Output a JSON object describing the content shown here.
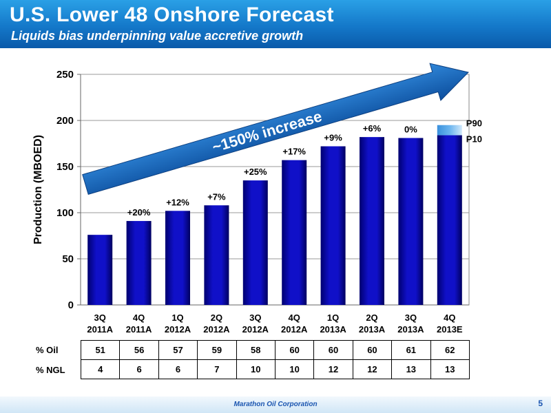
{
  "header": {
    "title": "U.S. Lower 48 Onshore Forecast",
    "subtitle": "Liquids bias underpinning value accretive growth"
  },
  "chart_data": {
    "type": "bar",
    "ylabel": "Production (MBOED)",
    "xlabel": "",
    "ylim": [
      0,
      250
    ],
    "yticks": [
      0,
      50,
      100,
      150,
      200,
      250
    ],
    "grid": true,
    "categories": [
      [
        "3Q",
        "2011A"
      ],
      [
        "4Q",
        "2011A"
      ],
      [
        "1Q",
        "2012A"
      ],
      [
        "2Q",
        "2012A"
      ],
      [
        "3Q",
        "2012A"
      ],
      [
        "4Q",
        "2012A"
      ],
      [
        "1Q",
        "2013A"
      ],
      [
        "2Q",
        "2013A"
      ],
      [
        "3Q",
        "2013A"
      ],
      [
        "4Q",
        "2013E"
      ]
    ],
    "values": [
      76,
      91,
      102,
      108,
      135,
      157,
      172,
      182,
      181,
      184
    ],
    "growth_labels": [
      "",
      "+20%",
      "+12%",
      "+7%",
      "+25%",
      "+17%",
      "+9%",
      "+6%",
      "0%",
      ""
    ],
    "forecast_range": {
      "p10": 184,
      "p90": 195,
      "p90_label": "P90",
      "p10_label": "P10"
    },
    "annotation": "~150% increase",
    "colors": {
      "bar": "#1010c8",
      "bar_dark": "#000070",
      "forecast_band": "#6ab4ee",
      "arrow": "#1565c0"
    }
  },
  "table": {
    "oil_label": "% Oil",
    "ngl_label": "% NGL",
    "oil": [
      "51",
      "56",
      "57",
      "59",
      "58",
      "60",
      "60",
      "60",
      "61",
      "62"
    ],
    "ngl": [
      "4",
      "6",
      "6",
      "7",
      "10",
      "10",
      "12",
      "12",
      "13",
      "13"
    ]
  },
  "footer": {
    "company": "Marathon Oil Corporation",
    "page": "5"
  }
}
